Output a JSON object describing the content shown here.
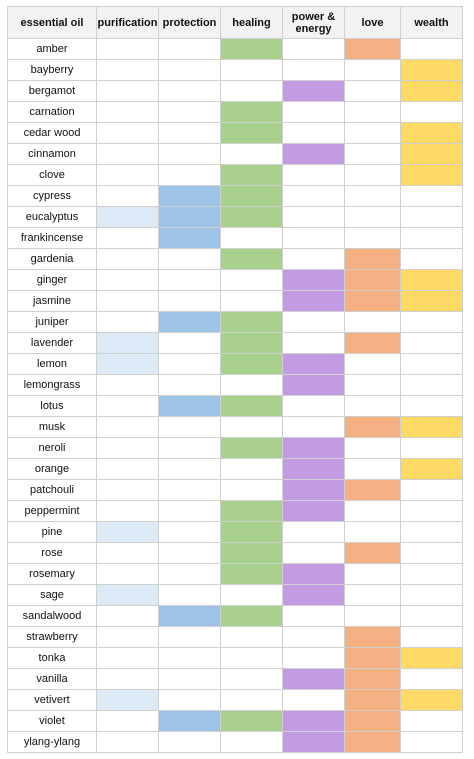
{
  "colors": {
    "purification": "#dce9f6",
    "protection": "#9dc3e6",
    "healing": "#a9d18e",
    "power_energy": "#c39be3",
    "love": "#f4b183",
    "wealth": "#ffd966",
    "header_bg": "#f2f2f2",
    "grid": "#d0d0d0"
  },
  "columns": [
    {
      "key": "oil",
      "label": "essential oil"
    },
    {
      "key": "purification",
      "label": "purification"
    },
    {
      "key": "protection",
      "label": "protection"
    },
    {
      "key": "healing",
      "label": "healing"
    },
    {
      "key": "power_energy",
      "label": "power & energy"
    },
    {
      "key": "love",
      "label": "love"
    },
    {
      "key": "wealth",
      "label": "wealth"
    }
  ],
  "rows": [
    {
      "oil": "amber",
      "purification": false,
      "protection": false,
      "healing": true,
      "power_energy": false,
      "love": true,
      "wealth": false
    },
    {
      "oil": "bayberry",
      "purification": false,
      "protection": false,
      "healing": false,
      "power_energy": false,
      "love": false,
      "wealth": true
    },
    {
      "oil": "bergamot",
      "purification": false,
      "protection": false,
      "healing": false,
      "power_energy": true,
      "love": false,
      "wealth": true
    },
    {
      "oil": "carnation",
      "purification": false,
      "protection": false,
      "healing": true,
      "power_energy": false,
      "love": false,
      "wealth": false
    },
    {
      "oil": "cedar wood",
      "purification": false,
      "protection": false,
      "healing": true,
      "power_energy": false,
      "love": false,
      "wealth": true
    },
    {
      "oil": "cinnamon",
      "purification": false,
      "protection": false,
      "healing": false,
      "power_energy": true,
      "love": false,
      "wealth": true
    },
    {
      "oil": "clove",
      "purification": false,
      "protection": false,
      "healing": true,
      "power_energy": false,
      "love": false,
      "wealth": true
    },
    {
      "oil": "cypress",
      "purification": false,
      "protection": true,
      "healing": true,
      "power_energy": false,
      "love": false,
      "wealth": false
    },
    {
      "oil": "eucalyptus",
      "purification": true,
      "protection": true,
      "healing": true,
      "power_energy": false,
      "love": false,
      "wealth": false
    },
    {
      "oil": "frankincense",
      "purification": false,
      "protection": true,
      "healing": false,
      "power_energy": false,
      "love": false,
      "wealth": false
    },
    {
      "oil": "gardenia",
      "purification": false,
      "protection": false,
      "healing": true,
      "power_energy": false,
      "love": true,
      "wealth": false
    },
    {
      "oil": "ginger",
      "purification": false,
      "protection": false,
      "healing": false,
      "power_energy": true,
      "love": true,
      "wealth": true
    },
    {
      "oil": "jasmine",
      "purification": false,
      "protection": false,
      "healing": false,
      "power_energy": true,
      "love": true,
      "wealth": true
    },
    {
      "oil": "juniper",
      "purification": false,
      "protection": true,
      "healing": true,
      "power_energy": false,
      "love": false,
      "wealth": false
    },
    {
      "oil": "lavender",
      "purification": true,
      "protection": false,
      "healing": true,
      "power_energy": false,
      "love": true,
      "wealth": false
    },
    {
      "oil": "lemon",
      "purification": true,
      "protection": false,
      "healing": true,
      "power_energy": true,
      "love": false,
      "wealth": false
    },
    {
      "oil": "lemongrass",
      "purification": false,
      "protection": false,
      "healing": false,
      "power_energy": true,
      "love": false,
      "wealth": false
    },
    {
      "oil": "lotus",
      "purification": false,
      "protection": true,
      "healing": true,
      "power_energy": false,
      "love": false,
      "wealth": false
    },
    {
      "oil": "musk",
      "purification": false,
      "protection": false,
      "healing": false,
      "power_energy": false,
      "love": true,
      "wealth": true
    },
    {
      "oil": "neroli",
      "purification": false,
      "protection": false,
      "healing": true,
      "power_energy": true,
      "love": false,
      "wealth": false
    },
    {
      "oil": "orange",
      "purification": false,
      "protection": false,
      "healing": false,
      "power_energy": true,
      "love": false,
      "wealth": true
    },
    {
      "oil": "patchouli",
      "purification": false,
      "protection": false,
      "healing": false,
      "power_energy": true,
      "love": true,
      "wealth": false
    },
    {
      "oil": "peppermint",
      "purification": false,
      "protection": false,
      "healing": true,
      "power_energy": true,
      "love": false,
      "wealth": false
    },
    {
      "oil": "pine",
      "purification": true,
      "protection": false,
      "healing": true,
      "power_energy": false,
      "love": false,
      "wealth": false
    },
    {
      "oil": "rose",
      "purification": false,
      "protection": false,
      "healing": true,
      "power_energy": false,
      "love": true,
      "wealth": false
    },
    {
      "oil": "rosemary",
      "purification": false,
      "protection": false,
      "healing": true,
      "power_energy": true,
      "love": false,
      "wealth": false
    },
    {
      "oil": "sage",
      "purification": true,
      "protection": false,
      "healing": false,
      "power_energy": true,
      "love": false,
      "wealth": false
    },
    {
      "oil": "sandalwood",
      "purification": false,
      "protection": true,
      "healing": true,
      "power_energy": false,
      "love": false,
      "wealth": false
    },
    {
      "oil": "strawberry",
      "purification": false,
      "protection": false,
      "healing": false,
      "power_energy": false,
      "love": true,
      "wealth": false
    },
    {
      "oil": "tonka",
      "purification": false,
      "protection": false,
      "healing": false,
      "power_energy": false,
      "love": true,
      "wealth": true
    },
    {
      "oil": "vanilla",
      "purification": false,
      "protection": false,
      "healing": false,
      "power_energy": true,
      "love": true,
      "wealth": false
    },
    {
      "oil": "vetivert",
      "purification": true,
      "protection": false,
      "healing": false,
      "power_energy": false,
      "love": true,
      "wealth": true
    },
    {
      "oil": "violet",
      "purification": false,
      "protection": true,
      "healing": true,
      "power_energy": true,
      "love": true,
      "wealth": false
    },
    {
      "oil": "ylang-ylang",
      "purification": false,
      "protection": false,
      "healing": false,
      "power_energy": true,
      "love": true,
      "wealth": false
    }
  ]
}
